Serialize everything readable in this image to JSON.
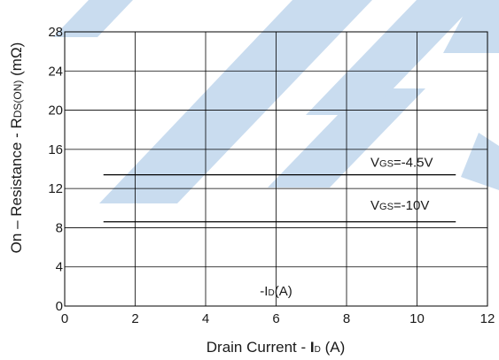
{
  "chart_data": {
    "type": "line",
    "xlabel": {
      "pre": "Drain Current - ",
      "main": "I",
      "sub": "D",
      "post": " (A)"
    },
    "ylabel": {
      "pre": "On – Resistance - R",
      "sub": "DS(ON)",
      "post": " (mΩ)"
    },
    "xlim": [
      0,
      12
    ],
    "ylim": [
      0,
      28
    ],
    "xticks": [
      0,
      2,
      4,
      6,
      8,
      10,
      12
    ],
    "yticks": [
      0,
      4,
      8,
      12,
      16,
      20,
      24,
      28
    ],
    "grid": true,
    "series": [
      {
        "label": {
          "main": "V",
          "sub": "GS",
          "post": "=-4.5V"
        },
        "x": [
          1.1,
          11.1
        ],
        "y": [
          13.4,
          13.4
        ]
      },
      {
        "label": {
          "main": "V",
          "sub": "GS",
          "post": "=-10V"
        },
        "x": [
          1.1,
          11.1
        ],
        "y": [
          8.6,
          8.6
        ]
      }
    ],
    "annotation": {
      "pre": "-I",
      "sub": "D",
      "post": "(A)",
      "x": 6,
      "y": 1.1
    }
  },
  "colors": {
    "lines": "#000000",
    "watermark": "#c9dcef"
  }
}
